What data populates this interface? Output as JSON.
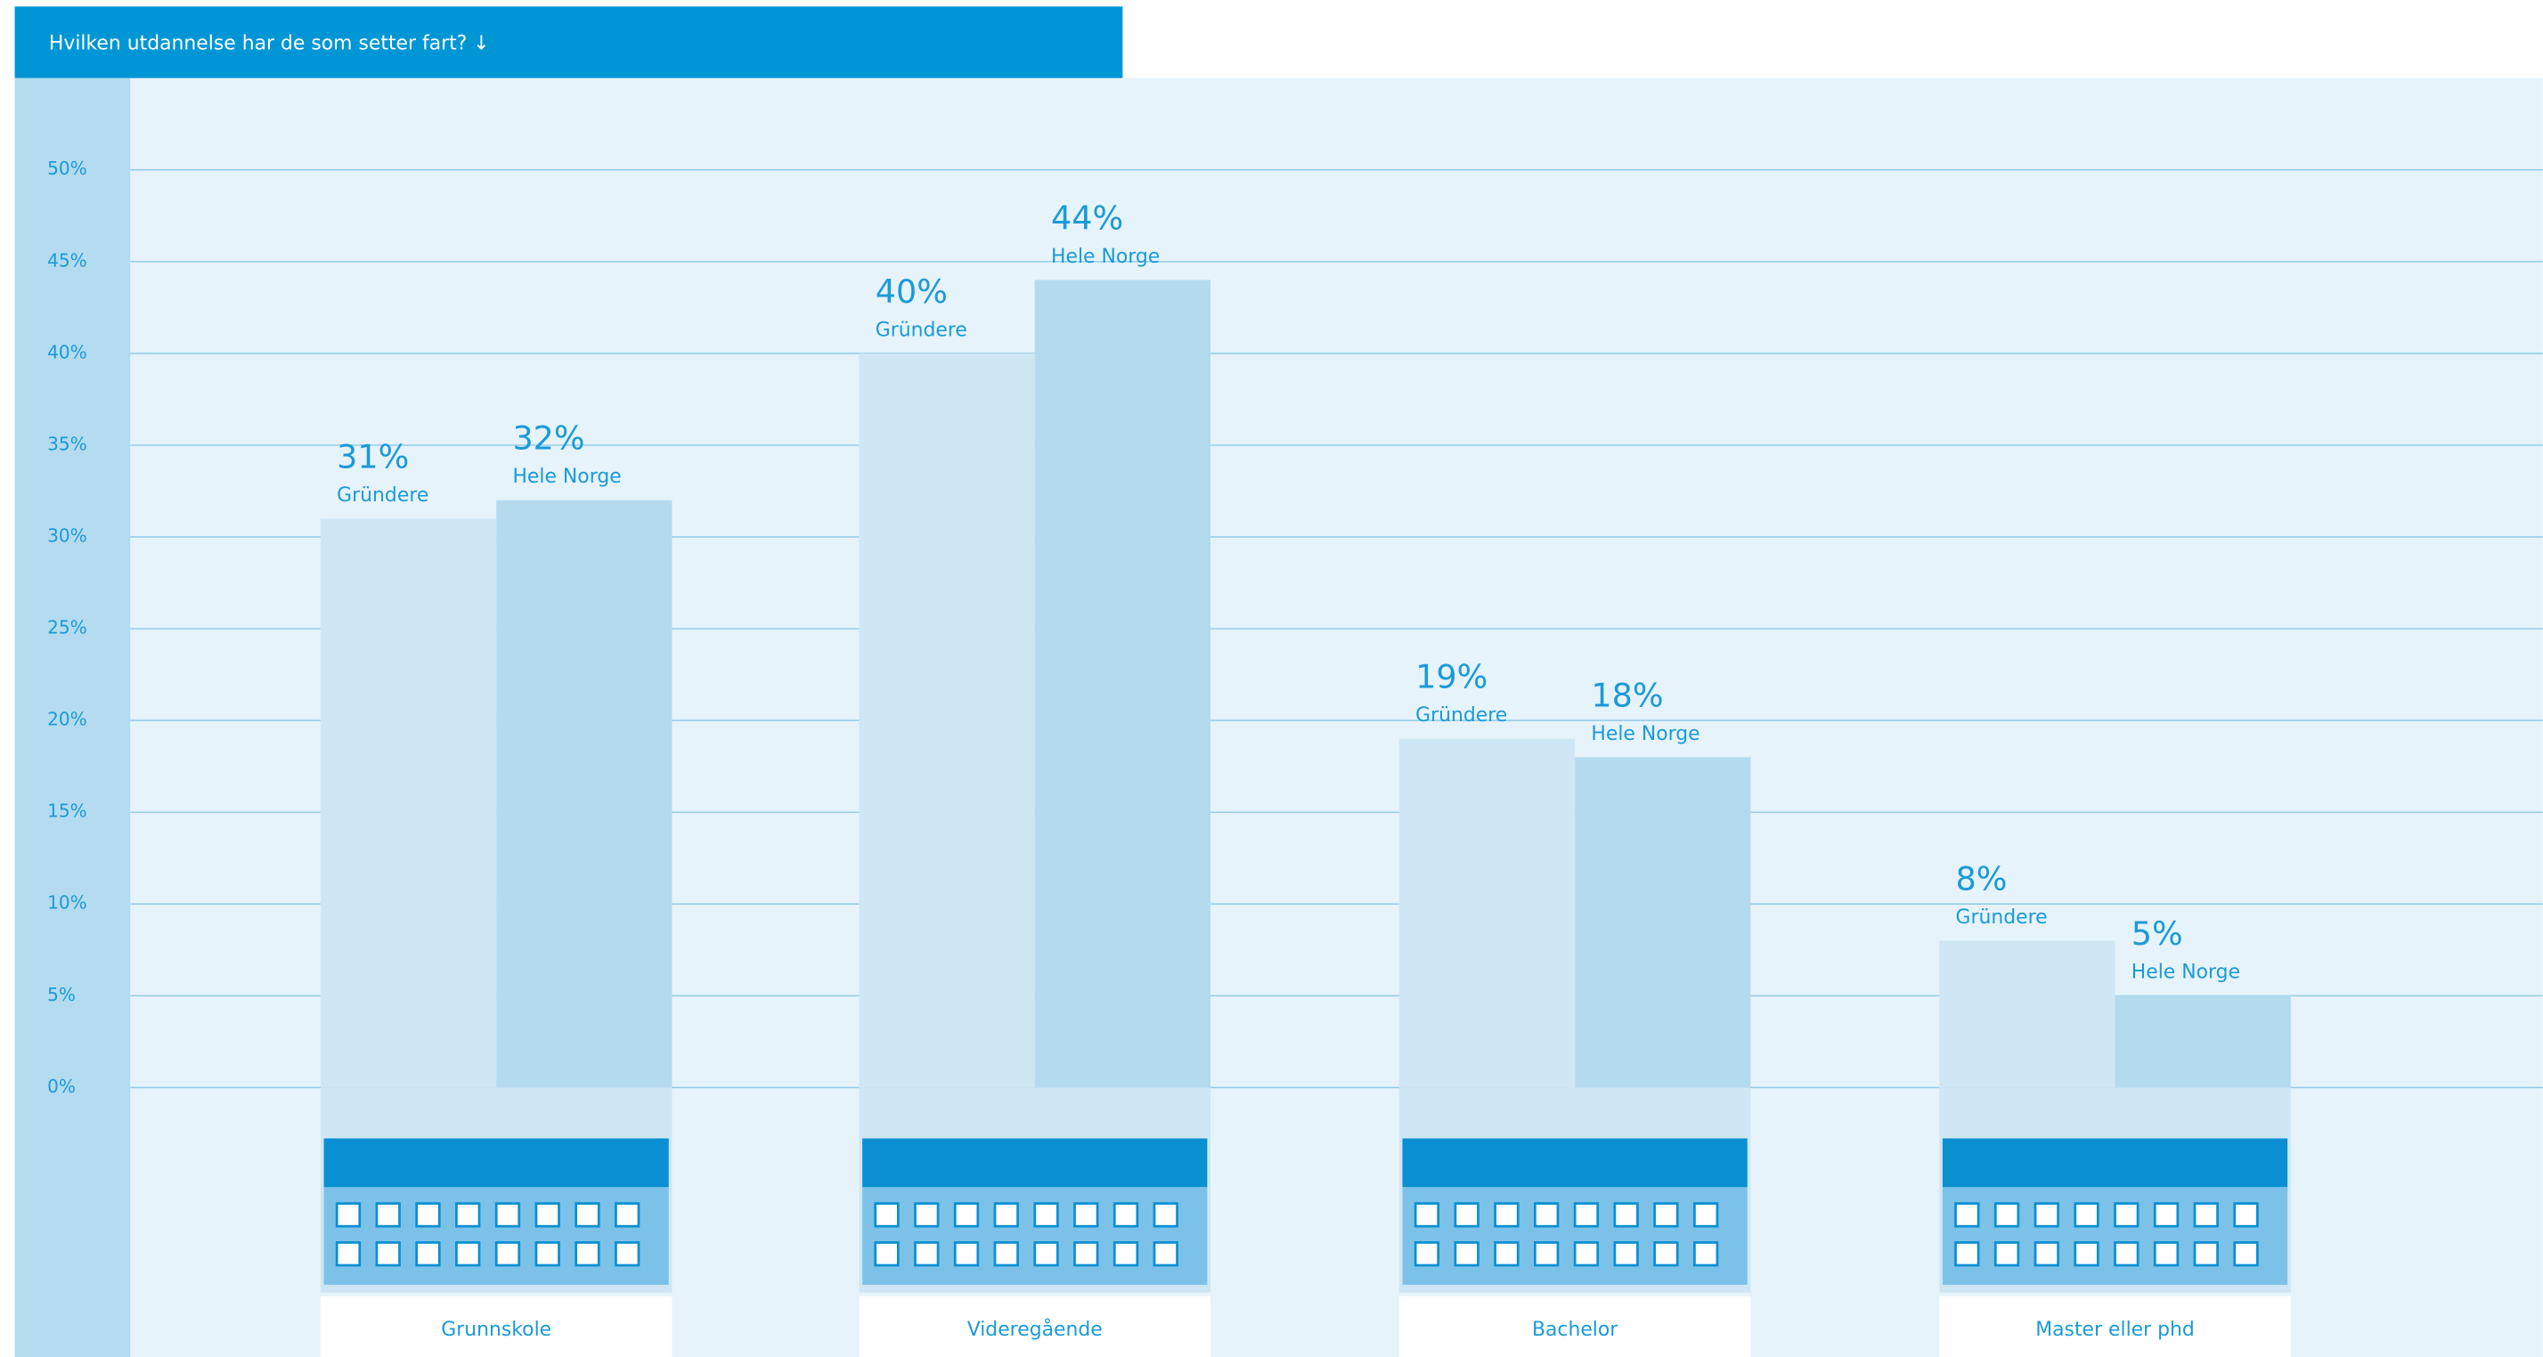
{
  "chart_data": {
    "type": "bar",
    "title": "Hvilken utdannelse har de som setter fart? ↓",
    "categories": [
      "Grunnskole",
      "Videregående",
      "Bachelor",
      "Master eller phd"
    ],
    "series": [
      {
        "name": "Gründere",
        "color": "#cfe7f4",
        "values": [
          31,
          40,
          19,
          8
        ],
        "value_labels": [
          "31%",
          "40%",
          "19%",
          "8%"
        ]
      },
      {
        "name": "Hele Norge",
        "color": "#b4daee",
        "values": [
          32,
          44,
          18,
          5
        ],
        "value_labels": [
          "32%",
          "44%",
          "18%",
          "5%"
        ]
      }
    ],
    "ylim": [
      -15,
      55
    ],
    "yticks": [
      {
        "value": 0,
        "label": "0%"
      },
      {
        "value": 5,
        "label": "5%"
      },
      {
        "value": 10,
        "label": "10%"
      },
      {
        "value": 15,
        "label": "15%"
      },
      {
        "value": 20,
        "label": "20%"
      },
      {
        "value": 25,
        "label": "25%"
      },
      {
        "value": 30,
        "label": "30%"
      },
      {
        "value": 35,
        "label": "35%"
      },
      {
        "value": 40,
        "label": "40%"
      },
      {
        "value": 45,
        "label": "45%"
      },
      {
        "value": 50,
        "label": "50%"
      }
    ],
    "grid": true
  }
}
